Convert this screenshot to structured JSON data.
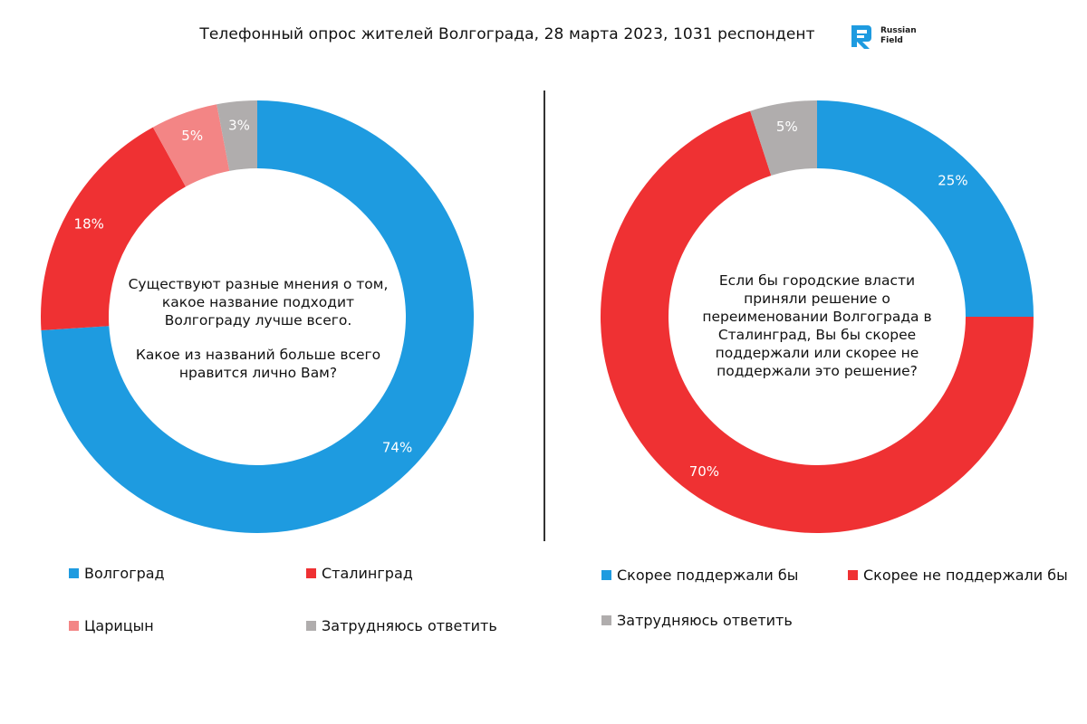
{
  "header": {
    "title": "Телефонный опрос жителей Волгограда, 28 марта 2023, 1031 респондент",
    "logo_line1": "Russian",
    "logo_line2": "Field",
    "logo_icon": "russian-field-logo",
    "logo_color": "#1e9be0"
  },
  "colors": {
    "blue": "#1e9be0",
    "red": "#ef3133",
    "pink": "#f38585",
    "grey": "#b0adad"
  },
  "chart_data": [
    {
      "type": "pie",
      "donut": true,
      "question": [
        "Существуют разные мнения о том, какое название подходит Волгограду лучше всего.",
        "Какое из названий больше всего нравится лично Вам?"
      ],
      "slices": [
        {
          "label": "Волгоград",
          "value": 74,
          "text": "74%",
          "color": "#1e9be0"
        },
        {
          "label": "Сталинград",
          "value": 18,
          "text": "18%",
          "color": "#ef3133"
        },
        {
          "label": "Царицын",
          "value": 5,
          "text": "5%",
          "color": "#f38585"
        },
        {
          "label": "Затрудняюсь ответить",
          "value": 3,
          "text": "3%",
          "color": "#b0adad"
        }
      ],
      "legend_position": "bottom"
    },
    {
      "type": "pie",
      "donut": true,
      "question": [
        "Если бы городские власти приняли решение о переименовании Волгограда в Сталинград, Вы бы скорее поддержали или скорее не поддержали это решение?"
      ],
      "slices": [
        {
          "label": "Скорее поддержали бы",
          "value": 25,
          "text": "25%",
          "color": "#1e9be0"
        },
        {
          "label": "Скорее не поддержали бы",
          "value": 70,
          "text": "70%",
          "color": "#ef3133"
        },
        {
          "label": "Затрудняюсь ответить",
          "value": 5,
          "text": "5%",
          "color": "#b0adad"
        }
      ],
      "legend_position": "bottom"
    }
  ]
}
